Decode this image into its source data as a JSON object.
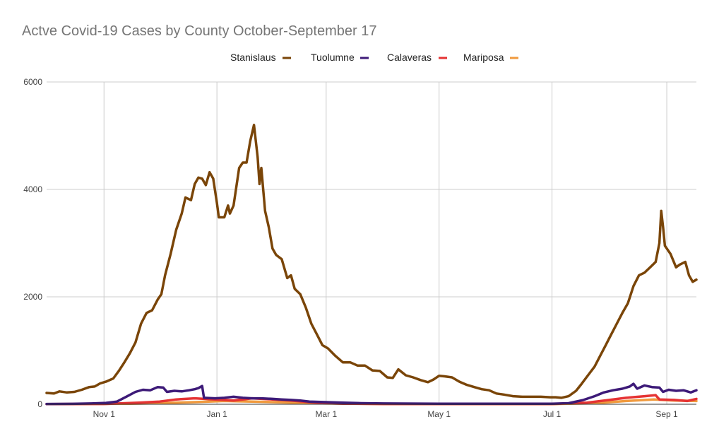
{
  "chart_data": {
    "type": "line",
    "title": "Actve Covid-19 Cases by County October-September 17",
    "xlabel": "",
    "ylabel": "",
    "x_start": "2020-10-01",
    "x_end": "2021-09-17",
    "ylim": [
      0,
      6000
    ],
    "y_ticks": [
      0,
      2000,
      4000,
      6000
    ],
    "y_tick_labels": [
      "0",
      "2000",
      "4000",
      "6000"
    ],
    "x_ticks": [
      {
        "label": "Nov 1",
        "date": "2020-11-01"
      },
      {
        "label": "Jan 1",
        "date": "2021-01-01"
      },
      {
        "label": "Mar 1",
        "date": "2021-03-01"
      },
      {
        "label": "May 1",
        "date": "2021-05-01"
      },
      {
        "label": "Jul 1",
        "date": "2021-07-01"
      },
      {
        "label": "Sep 1",
        "date": "2021-09-01"
      }
    ],
    "grid": true,
    "legend_position": "top",
    "series": [
      {
        "name": "Stanislaus",
        "color": "#7a4508",
        "points": [
          [
            "2020-10-01",
            210
          ],
          [
            "2020-10-05",
            200
          ],
          [
            "2020-10-08",
            240
          ],
          [
            "2020-10-12",
            220
          ],
          [
            "2020-10-16",
            230
          ],
          [
            "2020-10-20",
            270
          ],
          [
            "2020-10-24",
            320
          ],
          [
            "2020-10-27",
            330
          ],
          [
            "2020-10-30",
            390
          ],
          [
            "2020-11-02",
            420
          ],
          [
            "2020-11-06",
            480
          ],
          [
            "2020-11-09",
            620
          ],
          [
            "2020-11-12",
            780
          ],
          [
            "2020-11-15",
            950
          ],
          [
            "2020-11-18",
            1150
          ],
          [
            "2020-11-21",
            1500
          ],
          [
            "2020-11-24",
            1700
          ],
          [
            "2020-11-27",
            1750
          ],
          [
            "2020-11-30",
            1950
          ],
          [
            "2020-12-02",
            2050
          ],
          [
            "2020-12-04",
            2400
          ],
          [
            "2020-12-07",
            2800
          ],
          [
            "2020-12-10",
            3250
          ],
          [
            "2020-12-13",
            3550
          ],
          [
            "2020-12-15",
            3850
          ],
          [
            "2020-12-18",
            3800
          ],
          [
            "2020-12-20",
            4100
          ],
          [
            "2020-12-22",
            4220
          ],
          [
            "2020-12-24",
            4200
          ],
          [
            "2020-12-26",
            4080
          ],
          [
            "2020-12-28",
            4320
          ],
          [
            "2020-12-30",
            4200
          ],
          [
            "2021-01-01",
            3750
          ],
          [
            "2021-01-02",
            3480
          ],
          [
            "2021-01-05",
            3480
          ],
          [
            "2021-01-07",
            3700
          ],
          [
            "2021-01-08",
            3550
          ],
          [
            "2021-01-10",
            3700
          ],
          [
            "2021-01-13",
            4400
          ],
          [
            "2021-01-15",
            4500
          ],
          [
            "2021-01-17",
            4500
          ],
          [
            "2021-01-19",
            4900
          ],
          [
            "2021-01-21",
            5200
          ],
          [
            "2021-01-23",
            4600
          ],
          [
            "2021-01-24",
            4100
          ],
          [
            "2021-01-25",
            4400
          ],
          [
            "2021-01-27",
            3600
          ],
          [
            "2021-01-29",
            3300
          ],
          [
            "2021-01-31",
            2900
          ],
          [
            "2021-02-02",
            2780
          ],
          [
            "2021-02-05",
            2700
          ],
          [
            "2021-02-08",
            2350
          ],
          [
            "2021-02-10",
            2400
          ],
          [
            "2021-02-12",
            2150
          ],
          [
            "2021-02-15",
            2050
          ],
          [
            "2021-02-18",
            1800
          ],
          [
            "2021-02-21",
            1500
          ],
          [
            "2021-02-24",
            1300
          ],
          [
            "2021-02-27",
            1100
          ],
          [
            "2021-03-02",
            1040
          ],
          [
            "2021-03-06",
            900
          ],
          [
            "2021-03-10",
            780
          ],
          [
            "2021-03-14",
            780
          ],
          [
            "2021-03-18",
            720
          ],
          [
            "2021-03-22",
            720
          ],
          [
            "2021-03-26",
            630
          ],
          [
            "2021-03-30",
            620
          ],
          [
            "2021-04-03",
            500
          ],
          [
            "2021-04-06",
            490
          ],
          [
            "2021-04-09",
            650
          ],
          [
            "2021-04-13",
            540
          ],
          [
            "2021-04-17",
            500
          ],
          [
            "2021-04-21",
            450
          ],
          [
            "2021-04-25",
            410
          ],
          [
            "2021-04-28",
            460
          ],
          [
            "2021-05-01",
            530
          ],
          [
            "2021-05-04",
            520
          ],
          [
            "2021-05-08",
            500
          ],
          [
            "2021-05-12",
            420
          ],
          [
            "2021-05-16",
            360
          ],
          [
            "2021-05-20",
            320
          ],
          [
            "2021-05-24",
            280
          ],
          [
            "2021-05-28",
            260
          ],
          [
            "2021-06-01",
            200
          ],
          [
            "2021-06-05",
            180
          ],
          [
            "2021-06-10",
            150
          ],
          [
            "2021-06-15",
            140
          ],
          [
            "2021-06-20",
            140
          ],
          [
            "2021-06-25",
            140
          ],
          [
            "2021-06-30",
            130
          ],
          [
            "2021-07-03",
            130
          ],
          [
            "2021-07-06",
            120
          ],
          [
            "2021-07-10",
            150
          ],
          [
            "2021-07-14",
            250
          ],
          [
            "2021-07-17",
            380
          ],
          [
            "2021-07-20",
            520
          ],
          [
            "2021-07-24",
            700
          ],
          [
            "2021-07-27",
            900
          ],
          [
            "2021-07-30",
            1100
          ],
          [
            "2021-08-02",
            1300
          ],
          [
            "2021-08-05",
            1500
          ],
          [
            "2021-08-08",
            1700
          ],
          [
            "2021-08-11",
            1880
          ],
          [
            "2021-08-14",
            2200
          ],
          [
            "2021-08-17",
            2400
          ],
          [
            "2021-08-20",
            2450
          ],
          [
            "2021-08-23",
            2550
          ],
          [
            "2021-08-26",
            2650
          ],
          [
            "2021-08-28",
            3000
          ],
          [
            "2021-08-29",
            3600
          ],
          [
            "2021-08-30",
            3300
          ],
          [
            "2021-08-31",
            2950
          ],
          [
            "2021-09-03",
            2800
          ],
          [
            "2021-09-06",
            2550
          ],
          [
            "2021-09-08",
            2600
          ],
          [
            "2021-09-11",
            2650
          ],
          [
            "2021-09-13",
            2400
          ],
          [
            "2021-09-15",
            2280
          ],
          [
            "2021-09-17",
            2320
          ]
        ]
      },
      {
        "name": "Tuolumne",
        "color": "#3d1a78",
        "points": [
          [
            "2020-10-01",
            5
          ],
          [
            "2020-10-15",
            8
          ],
          [
            "2020-10-25",
            15
          ],
          [
            "2020-11-02",
            25
          ],
          [
            "2020-11-08",
            50
          ],
          [
            "2020-11-13",
            140
          ],
          [
            "2020-11-18",
            230
          ],
          [
            "2020-11-22",
            270
          ],
          [
            "2020-11-26",
            260
          ],
          [
            "2020-11-30",
            320
          ],
          [
            "2020-12-03",
            310
          ],
          [
            "2020-12-05",
            230
          ],
          [
            "2020-12-09",
            250
          ],
          [
            "2020-12-13",
            240
          ],
          [
            "2020-12-17",
            260
          ],
          [
            "2020-12-20",
            280
          ],
          [
            "2020-12-22",
            300
          ],
          [
            "2020-12-24",
            340
          ],
          [
            "2020-12-25",
            120
          ],
          [
            "2020-12-31",
            110
          ],
          [
            "2021-01-05",
            120
          ],
          [
            "2021-01-10",
            140
          ],
          [
            "2021-01-15",
            120
          ],
          [
            "2021-01-20",
            110
          ],
          [
            "2021-01-25",
            110
          ],
          [
            "2021-01-31",
            100
          ],
          [
            "2021-02-05",
            90
          ],
          [
            "2021-02-10",
            80
          ],
          [
            "2021-02-15",
            70
          ],
          [
            "2021-02-20",
            50
          ],
          [
            "2021-03-01",
            40
          ],
          [
            "2021-03-10",
            30
          ],
          [
            "2021-03-20",
            20
          ],
          [
            "2021-04-01",
            15
          ],
          [
            "2021-05-01",
            10
          ],
          [
            "2021-06-01",
            10
          ],
          [
            "2021-07-01",
            10
          ],
          [
            "2021-07-10",
            20
          ],
          [
            "2021-07-18",
            80
          ],
          [
            "2021-07-24",
            150
          ],
          [
            "2021-07-29",
            220
          ],
          [
            "2021-08-03",
            260
          ],
          [
            "2021-08-08",
            290
          ],
          [
            "2021-08-12",
            330
          ],
          [
            "2021-08-14",
            380
          ],
          [
            "2021-08-16",
            290
          ],
          [
            "2021-08-20",
            350
          ],
          [
            "2021-08-24",
            320
          ],
          [
            "2021-08-28",
            310
          ],
          [
            "2021-08-30",
            230
          ],
          [
            "2021-09-02",
            270
          ],
          [
            "2021-09-06",
            250
          ],
          [
            "2021-09-10",
            260
          ],
          [
            "2021-09-14",
            220
          ],
          [
            "2021-09-17",
            260
          ]
        ]
      },
      {
        "name": "Calaveras",
        "color": "#e53333",
        "points": [
          [
            "2020-10-01",
            2
          ],
          [
            "2020-11-01",
            5
          ],
          [
            "2020-11-20",
            30
          ],
          [
            "2020-12-01",
            50
          ],
          [
            "2020-12-10",
            90
          ],
          [
            "2020-12-20",
            110
          ],
          [
            "2020-12-31",
            90
          ],
          [
            "2021-01-10",
            70
          ],
          [
            "2021-01-20",
            110
          ],
          [
            "2021-01-31",
            90
          ],
          [
            "2021-02-10",
            70
          ],
          [
            "2021-02-20",
            40
          ],
          [
            "2021-03-01",
            20
          ],
          [
            "2021-03-10",
            10
          ],
          [
            "2021-04-01",
            5
          ],
          [
            "2021-06-01",
            5
          ],
          [
            "2021-07-01",
            5
          ],
          [
            "2021-07-20",
            30
          ],
          [
            "2021-08-01",
            80
          ],
          [
            "2021-08-10",
            120
          ],
          [
            "2021-08-20",
            150
          ],
          [
            "2021-08-26",
            170
          ],
          [
            "2021-08-28",
            90
          ],
          [
            "2021-09-05",
            80
          ],
          [
            "2021-09-12",
            60
          ],
          [
            "2021-09-17",
            100
          ]
        ]
      },
      {
        "name": "Mariposa",
        "color": "#f09a3e",
        "points": [
          [
            "2020-10-01",
            2
          ],
          [
            "2020-11-15",
            10
          ],
          [
            "2020-12-01",
            20
          ],
          [
            "2020-12-20",
            40
          ],
          [
            "2021-01-05",
            60
          ],
          [
            "2021-01-20",
            50
          ],
          [
            "2021-02-10",
            30
          ],
          [
            "2021-03-01",
            15
          ],
          [
            "2021-04-01",
            5
          ],
          [
            "2021-07-01",
            3
          ],
          [
            "2021-07-25",
            20
          ],
          [
            "2021-08-10",
            60
          ],
          [
            "2021-08-25",
            90
          ],
          [
            "2021-09-05",
            70
          ],
          [
            "2021-09-17",
            60
          ]
        ]
      }
    ]
  }
}
